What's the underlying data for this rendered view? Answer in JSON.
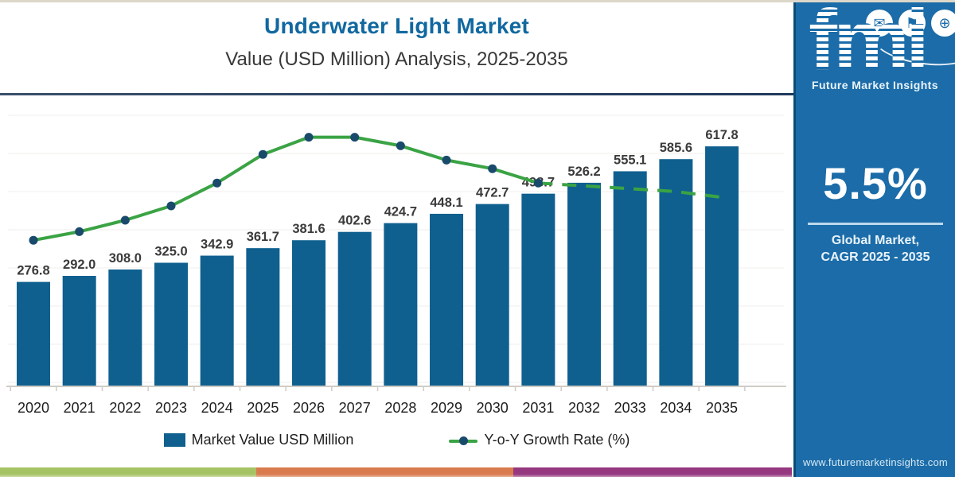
{
  "header": {
    "title": "Underwater Light Market",
    "subtitle": "Value (USD Million) Analysis, 2025-2035"
  },
  "chart_data": {
    "type": "bar",
    "categories": [
      "2020",
      "2021",
      "2022",
      "2023",
      "2024",
      "2025",
      "2026",
      "2027",
      "2028",
      "2029",
      "2030",
      "2031",
      "2032",
      "2033",
      "2034",
      "2035"
    ],
    "series": [
      {
        "name": "Market Value USD Million",
        "type": "bar",
        "values": [
          276.8,
          292.0,
          308.0,
          325.0,
          342.9,
          361.7,
          381.6,
          402.6,
          424.7,
          448.1,
          472.7,
          498.7,
          526.2,
          555.1,
          585.6,
          617.8
        ],
        "color": "#0f608f"
      },
      {
        "name": "Y-o-Y Growth Rate (%)",
        "type": "line",
        "values_estimated": [
          5.3,
          5.6,
          6.0,
          6.5,
          7.3,
          8.3,
          8.9,
          8.9,
          8.6,
          8.1,
          7.8,
          7.3,
          7.2,
          7.1,
          7.0,
          6.8
        ],
        "note": "no value axis shown in image; growth-line values estimated from plotted positions",
        "color": "#3aa344",
        "dot_color": "#1a4a6b",
        "solid_until_category": "2031",
        "dashed_after_2031": true
      }
    ],
    "data_labels": [
      "276.8",
      "292.0",
      "308.0",
      "325.0",
      "342.9",
      "361.7",
      "381.6",
      "402.6",
      "424.7",
      "448.1",
      "472.7",
      "498.7",
      "526.2",
      "555.1",
      "585.6",
      "617.8"
    ],
    "title": "Underwater Light Market Value (USD Million) Analysis, 2025-2035",
    "xlabel": "",
    "ylabel": "",
    "ylim": [
      0,
      660
    ],
    "grid": "horizontal-faint",
    "legend_position": "bottom"
  },
  "sidebar": {
    "logo_text": "fmi",
    "logo_subtext": "Future Market Insights",
    "icons": [
      {
        "name": "envelope-icon",
        "glyph": "✉"
      },
      {
        "name": "flag-icon",
        "glyph": "⚑"
      },
      {
        "name": "globe-icon",
        "glyph": "⊕"
      }
    ],
    "stat_value": "5.5%",
    "stat_caption_line1": "Global Market,",
    "stat_caption_line2": "CAGR 2025 - 2035",
    "website": "www.futuremarketinsights.com",
    "bg_color": "#1b6ca8"
  },
  "footer_stripe": {
    "colors": [
      "#a6c363",
      "#d97b4e",
      "#96387f"
    ],
    "widths_pct": [
      32.4,
      32.4,
      35.2
    ]
  }
}
